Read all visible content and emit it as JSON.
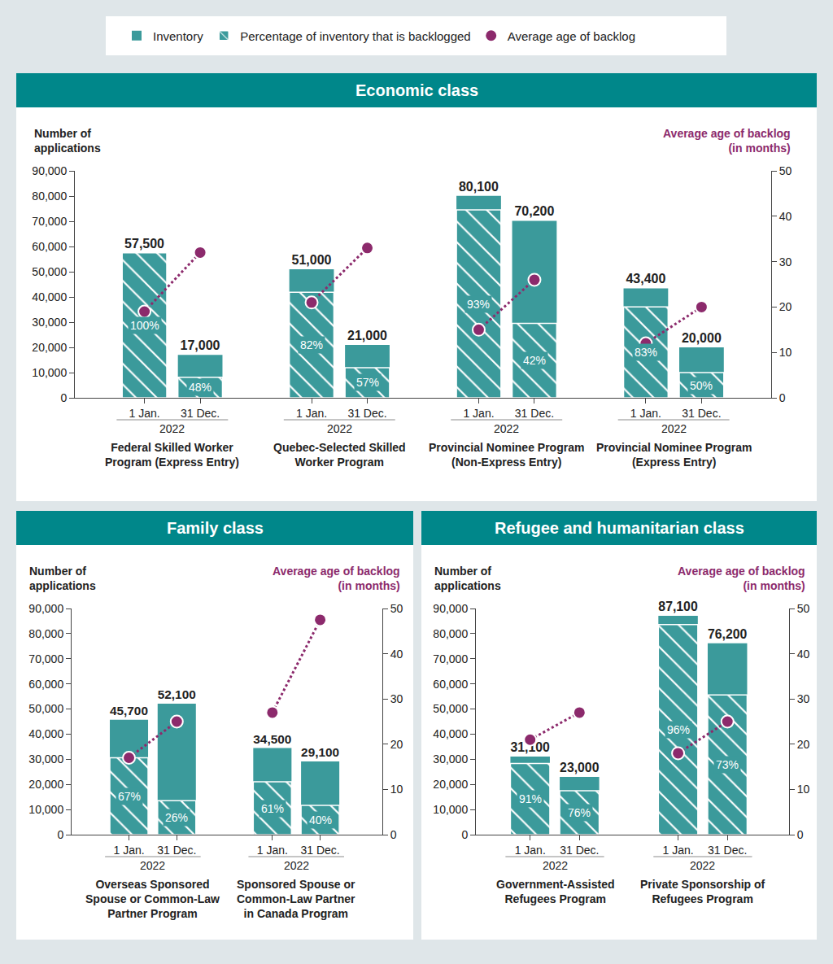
{
  "chart_data": [
    {
      "type": "bar",
      "title": "Economic class",
      "ylabel": "Number of applications",
      "y2label": "Average age of backlog (in months)",
      "legend": "top",
      "grid": false,
      "data_labels": true,
      "groups": [
        {
          "label": "Federal Skilled Worker Program (Express Entry)",
          "year": "2022",
          "categories": [
            "1 Jan.",
            "31 Dec."
          ]
        },
        {
          "label": "Quebec-Selected Skilled Worker Program",
          "year": "2022",
          "categories": [
            "1 Jan.",
            "31 Dec."
          ]
        },
        {
          "label": "Provincial Nominee Program (Non-Express Entry)",
          "year": "2022",
          "categories": [
            "1 Jan.",
            "31 Dec."
          ]
        },
        {
          "label": "Provincial Nominee Program (Express Entry)",
          "year": "2022",
          "categories": [
            "1 Jan.",
            "31 Dec."
          ]
        }
      ],
      "ylim": [
        0,
        90000
      ],
      "yticks": [
        0,
        {
          "value": 10000,
          "label": "10,000"
        },
        {
          "value": 20000,
          "label": "20,000"
        },
        {
          "value": 30000,
          "label": "30,000"
        },
        {
          "value": 40000,
          "label": "40,000"
        },
        {
          "value": 50000,
          "label": "50,000"
        },
        {
          "value": 60000,
          "label": "60,000"
        },
        {
          "value": 70000,
          "label": "70,000"
        },
        {
          "value": 80000,
          "label": "80,000"
        },
        {
          "value": 90000,
          "label": "90,000"
        }
      ],
      "y2lim": [
        0,
        50
      ],
      "y2ticks": [
        0,
        10,
        20,
        30,
        40,
        50
      ],
      "series": [
        {
          "name": "Inventory",
          "type": "bar",
          "color": "#3b9a9b",
          "values": [
            57500,
            17000,
            51000,
            21000,
            80100,
            70200,
            43400,
            20000
          ],
          "value_labels": [
            "57,500",
            "17,000",
            "51,000",
            "21,000",
            "80,100",
            "70,200",
            "43,400",
            "20,000"
          ]
        },
        {
          "name": "Percentage of inventory that is backlogged",
          "type": "bar",
          "marker": "hatched",
          "color": "#3b9a9b",
          "values": [
            100,
            48,
            82,
            57,
            93,
            42,
            83,
            50
          ],
          "value_labels": [
            "100%",
            "48%",
            "82%",
            "57%",
            "93%",
            "42%",
            "83%",
            "50%"
          ]
        },
        {
          "name": "Average age of backlog",
          "type": "line",
          "axis": "y2",
          "marker": "circle",
          "line_style": "dotted",
          "color": "#8c2a6c",
          "values": [
            19,
            32,
            21,
            33,
            15,
            26,
            12,
            20
          ]
        }
      ]
    },
    {
      "type": "bar",
      "title": "Family class",
      "ylabel": "Number of applications",
      "y2label": "Average age of backlog (in months)",
      "grid": false,
      "data_labels": true,
      "groups": [
        {
          "label": "Overseas Sponsored Spouse or Common-Law Partner Program",
          "year": "2022",
          "categories": [
            "1 Jan.",
            "31 Dec."
          ]
        },
        {
          "label": "Sponsored Spouse or Common-Law Partner in Canada Program",
          "year": "2022",
          "categories": [
            "1 Jan.",
            "31 Dec."
          ]
        }
      ],
      "ylim": [
        0,
        90000
      ],
      "yticks": [
        0,
        {
          "value": 10000,
          "label": "10,000"
        },
        {
          "value": 20000,
          "label": "20,000"
        },
        {
          "value": 30000,
          "label": "30,000"
        },
        {
          "value": 40000,
          "label": "40,000"
        },
        {
          "value": 50000,
          "label": "50,000"
        },
        {
          "value": 60000,
          "label": "60,000"
        },
        {
          "value": 70000,
          "label": "70,000"
        },
        {
          "value": 80000,
          "label": "80,000"
        },
        {
          "value": 90000,
          "label": "90,000"
        }
      ],
      "y2lim": [
        0,
        50
      ],
      "y2ticks": [
        0,
        10,
        20,
        30,
        40,
        50
      ],
      "series": [
        {
          "name": "Inventory",
          "type": "bar",
          "color": "#3b9a9b",
          "values": [
            45700,
            52100,
            34500,
            29100
          ],
          "value_labels": [
            "45,700",
            "52,100",
            "34,500",
            "29,100"
          ]
        },
        {
          "name": "Percentage of inventory that is backlogged",
          "type": "bar",
          "marker": "hatched",
          "color": "#3b9a9b",
          "values": [
            67,
            26,
            61,
            40
          ],
          "value_labels": [
            "67%",
            "26%",
            "61%",
            "40%"
          ]
        },
        {
          "name": "Average age of backlog",
          "type": "line",
          "axis": "y2",
          "marker": "circle",
          "line_style": "dotted",
          "color": "#8c2a6c",
          "values": [
            17,
            25,
            27,
            47.5
          ]
        }
      ]
    },
    {
      "type": "bar",
      "title": "Refugee and humanitarian class",
      "ylabel": "Number of applications",
      "y2label": "Average age of backlog (in months)",
      "grid": false,
      "data_labels": true,
      "groups": [
        {
          "label": "Government-Assisted Refugees Program",
          "year": "2022",
          "categories": [
            "1 Jan.",
            "31 Dec."
          ]
        },
        {
          "label": "Private Sponsorship of Refugees Program",
          "year": "2022",
          "categories": [
            "1 Jan.",
            "31 Dec."
          ]
        }
      ],
      "ylim": [
        0,
        90000
      ],
      "yticks": [
        0,
        {
          "value": 10000,
          "label": "10,000"
        },
        {
          "value": 20000,
          "label": "20,000"
        },
        {
          "value": 30000,
          "label": "30,000"
        },
        {
          "value": 40000,
          "label": "40,000"
        },
        {
          "value": 50000,
          "label": "50,000"
        },
        {
          "value": 60000,
          "label": "60,000"
        },
        {
          "value": 70000,
          "label": "70,000"
        },
        {
          "value": 80000,
          "label": "80,000"
        },
        {
          "value": 90000,
          "label": "90,000"
        }
      ],
      "y2lim": [
        0,
        50
      ],
      "y2ticks": [
        0,
        10,
        20,
        30,
        40,
        50
      ],
      "series": [
        {
          "name": "Inventory",
          "type": "bar",
          "color": "#3b9a9b",
          "values": [
            31100,
            23000,
            87100,
            76200
          ],
          "value_labels": [
            "31,100",
            "23,000",
            "87,100",
            "76,200"
          ]
        },
        {
          "name": "Percentage of inventory that is backlogged",
          "type": "bar",
          "marker": "hatched",
          "color": "#3b9a9b",
          "values": [
            91,
            76,
            96,
            73
          ],
          "value_labels": [
            "91%",
            "76%",
            "96%",
            "73%"
          ]
        },
        {
          "name": "Average age of backlog",
          "type": "line",
          "axis": "y2",
          "marker": "circle",
          "line_style": "dotted",
          "color": "#8c2a6c",
          "values": [
            21,
            27,
            18,
            25
          ]
        }
      ]
    }
  ]
}
